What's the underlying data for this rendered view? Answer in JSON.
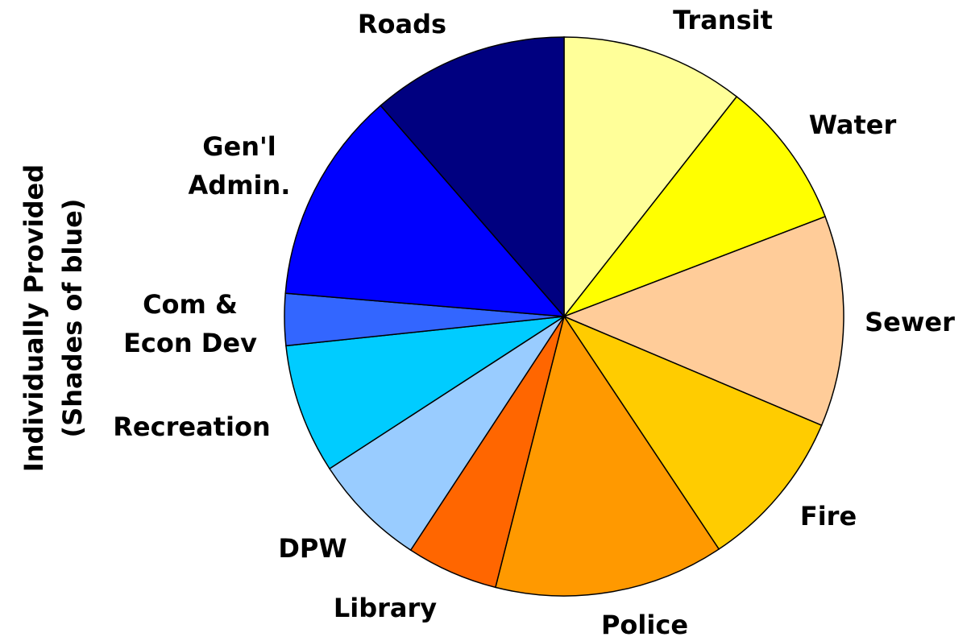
{
  "chart_data": {
    "type": "pie",
    "annotation": "Individually Provided\n(Shades of blue)",
    "categories": [
      "Transit",
      "Water",
      "Sewer",
      "Fire",
      "Police",
      "Library",
      "DPW",
      "Recreation",
      "Com &\nEcon Dev",
      "Gen'l\nAdmin.",
      "Roads"
    ],
    "values": [
      10.6,
      8.6,
      12.2,
      9.3,
      13.3,
      5.3,
      6.6,
      7.5,
      3.0,
      12.3,
      11.4
    ],
    "colors": [
      "#ffff99",
      "#ffff00",
      "#ffcc99",
      "#ffcc00",
      "#ff9900",
      "#ff6600",
      "#99ccff",
      "#00ccff",
      "#3366ff",
      "#0000ff",
      "#000080"
    ],
    "start_angle": 0,
    "direction": "clockwise"
  }
}
